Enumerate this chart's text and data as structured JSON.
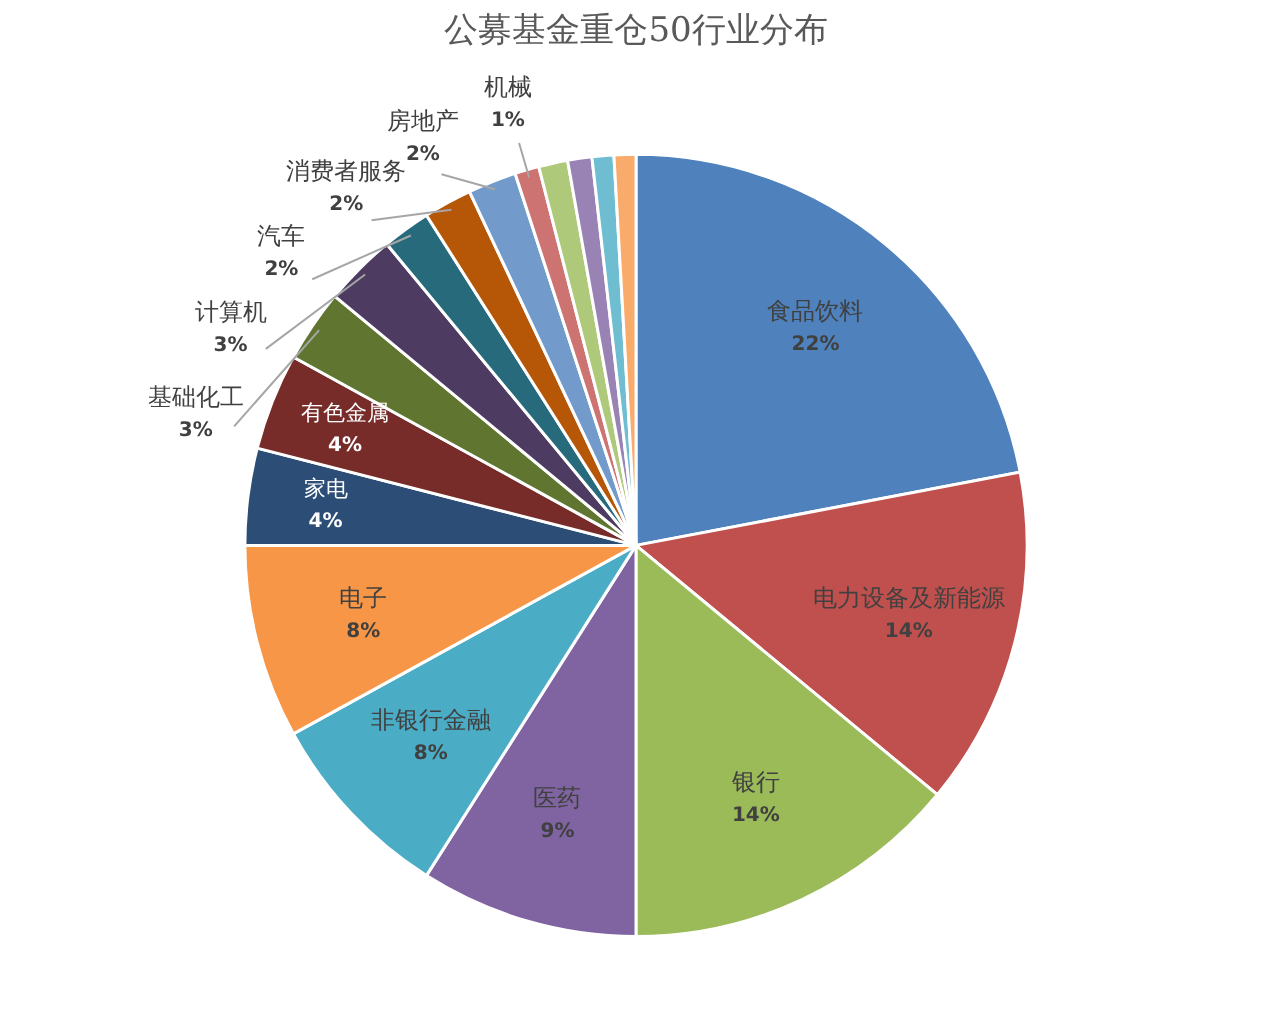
{
  "chart_data": {
    "type": "pie",
    "title": "公募基金重仓50行业分布",
    "categories": [
      "食品饮料",
      "电力设备及新能源",
      "银行",
      "医药",
      "非银行金融",
      "电子",
      "家电",
      "有色金属",
      "基础化工",
      "计算机",
      "汽车",
      "消费者服务",
      "房地产",
      "机械",
      null,
      null,
      null,
      null
    ],
    "values": [
      22,
      14,
      14,
      9,
      8,
      8,
      4,
      4,
      3,
      3,
      2,
      2,
      2,
      1,
      1.2,
      1.0,
      0.9,
      0.9
    ],
    "value_labels": [
      "22%",
      "14%",
      "14%",
      "9%",
      "8%",
      "8%",
      "4%",
      "4%",
      "3%",
      "3%",
      "2%",
      "2%",
      "2%",
      "1%",
      null,
      null,
      null,
      null
    ],
    "colors": [
      "#4f81bd",
      "#c0504d",
      "#9bbb59",
      "#8064a2",
      "#4bacc6",
      "#f79646",
      "#2c4d75",
      "#772c2a",
      "#5f7530",
      "#4d3b62",
      "#276a7c",
      "#b65708",
      "#729aca",
      "#cd7371",
      "#afc97a",
      "#9983b5",
      "#6fbdd1",
      "#f9ab6b"
    ],
    "legend": false
  }
}
